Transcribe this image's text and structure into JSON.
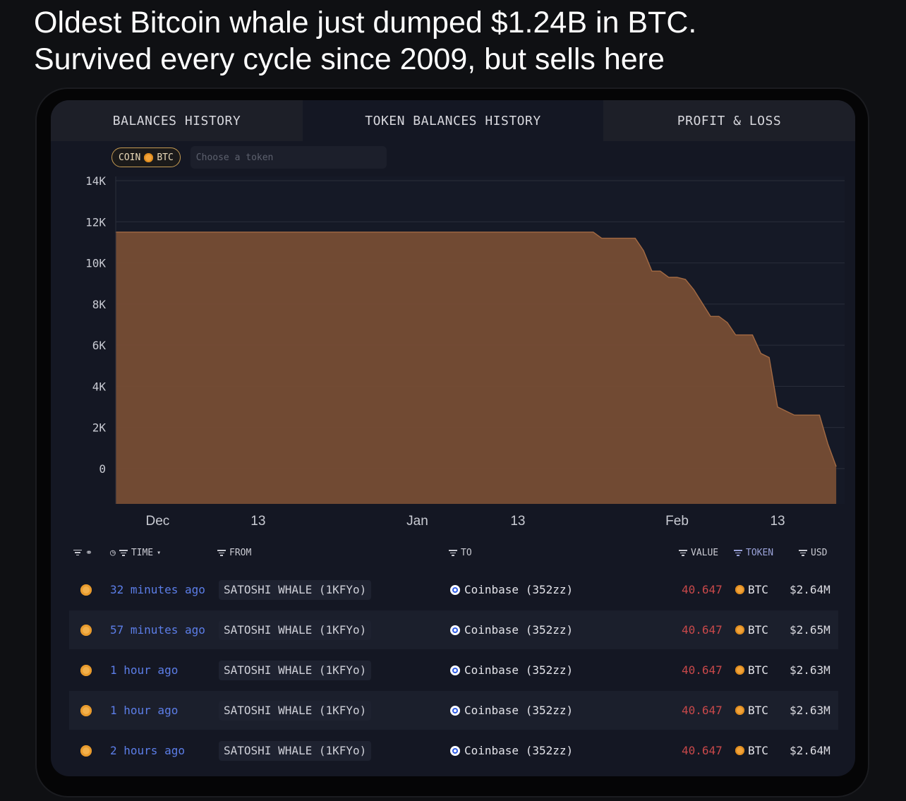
{
  "headline": {
    "line1": "Oldest Bitcoin whale just dumped $1.24B in BTC.",
    "line2": "Survived every cycle since 2009, but sells here"
  },
  "tabs": [
    {
      "label": "BALANCES HISTORY",
      "active": false
    },
    {
      "label": "TOKEN BALANCES HISTORY",
      "active": true
    },
    {
      "label": "PROFIT & LOSS",
      "active": false
    }
  ],
  "filters": {
    "coin_label": "COIN",
    "coin_token": "BTC",
    "token_placeholder": "Choose a token",
    "token_value": ""
  },
  "chart_data": {
    "type": "area",
    "title": "",
    "xlabel": "",
    "ylabel": "",
    "ylim": [
      0,
      14000
    ],
    "yticks": [
      0,
      2000,
      4000,
      6000,
      8000,
      10000,
      12000,
      14000
    ],
    "ytick_labels": [
      "0",
      "2K",
      "4K",
      "6K",
      "8K",
      "10K",
      "12K",
      "14K"
    ],
    "xtick_labels": [
      {
        "label": "Dec",
        "date": "2024-12-01"
      },
      {
        "label": "13",
        "date": "2024-12-13"
      },
      {
        "label": "Jan",
        "date": "2025-01-01"
      },
      {
        "label": "13",
        "date": "2025-01-13"
      },
      {
        "label": "Feb",
        "date": "2025-02-01"
      },
      {
        "label": "13",
        "date": "2025-02-13"
      }
    ],
    "x_range": [
      "2024-11-26",
      "2025-02-21"
    ],
    "grid": true,
    "legend": "none",
    "color": "#7a4e34",
    "series": [
      {
        "x": [
          "2024-11-26",
          "2025-01-22",
          "2025-01-23",
          "2025-01-27",
          "2025-01-28",
          "2025-01-29",
          "2025-01-30",
          "2025-01-31",
          "2025-02-01",
          "2025-02-02",
          "2025-02-03",
          "2025-02-05",
          "2025-02-06",
          "2025-02-07",
          "2025-02-08",
          "2025-02-10",
          "2025-02-11",
          "2025-02-12",
          "2025-02-13",
          "2025-02-15",
          "2025-02-18",
          "2025-02-19",
          "2025-02-20"
        ],
        "y": [
          11500,
          11500,
          11200,
          11200,
          10600,
          9600,
          9600,
          9300,
          9300,
          9200,
          8700,
          7400,
          7400,
          7100,
          6500,
          6500,
          5600,
          5400,
          3000,
          2600,
          2600,
          1200,
          100
        ]
      }
    ]
  },
  "table": {
    "headers": {
      "time": "TIME",
      "from": "FROM",
      "to": "TO",
      "value": "VALUE",
      "token": "TOKEN",
      "usd": "USD"
    },
    "rows": [
      {
        "time": "32 minutes ago",
        "from": "SATOSHI WHALE (1KFYo)",
        "to": "Coinbase (352zz)",
        "value": "40.647",
        "token": "BTC",
        "usd": "$2.64M"
      },
      {
        "time": "57 minutes ago",
        "from": "SATOSHI WHALE (1KFYo)",
        "to": "Coinbase (352zz)",
        "value": "40.647",
        "token": "BTC",
        "usd": "$2.65M"
      },
      {
        "time": "1 hour ago",
        "from": "SATOSHI WHALE (1KFYo)",
        "to": "Coinbase (352zz)",
        "value": "40.647",
        "token": "BTC",
        "usd": "$2.63M"
      },
      {
        "time": "1 hour ago",
        "from": "SATOSHI WHALE (1KFYo)",
        "to": "Coinbase (352zz)",
        "value": "40.647",
        "token": "BTC",
        "usd": "$2.63M"
      },
      {
        "time": "2 hours ago",
        "from": "SATOSHI WHALE (1KFYo)",
        "to": "Coinbase (352zz)",
        "value": "40.647",
        "token": "BTC",
        "usd": "$2.64M"
      }
    ]
  },
  "colors": {
    "accent_btc": "#f2a33a",
    "value_negative": "#c8484a",
    "link_blue": "#5c7ee8"
  }
}
